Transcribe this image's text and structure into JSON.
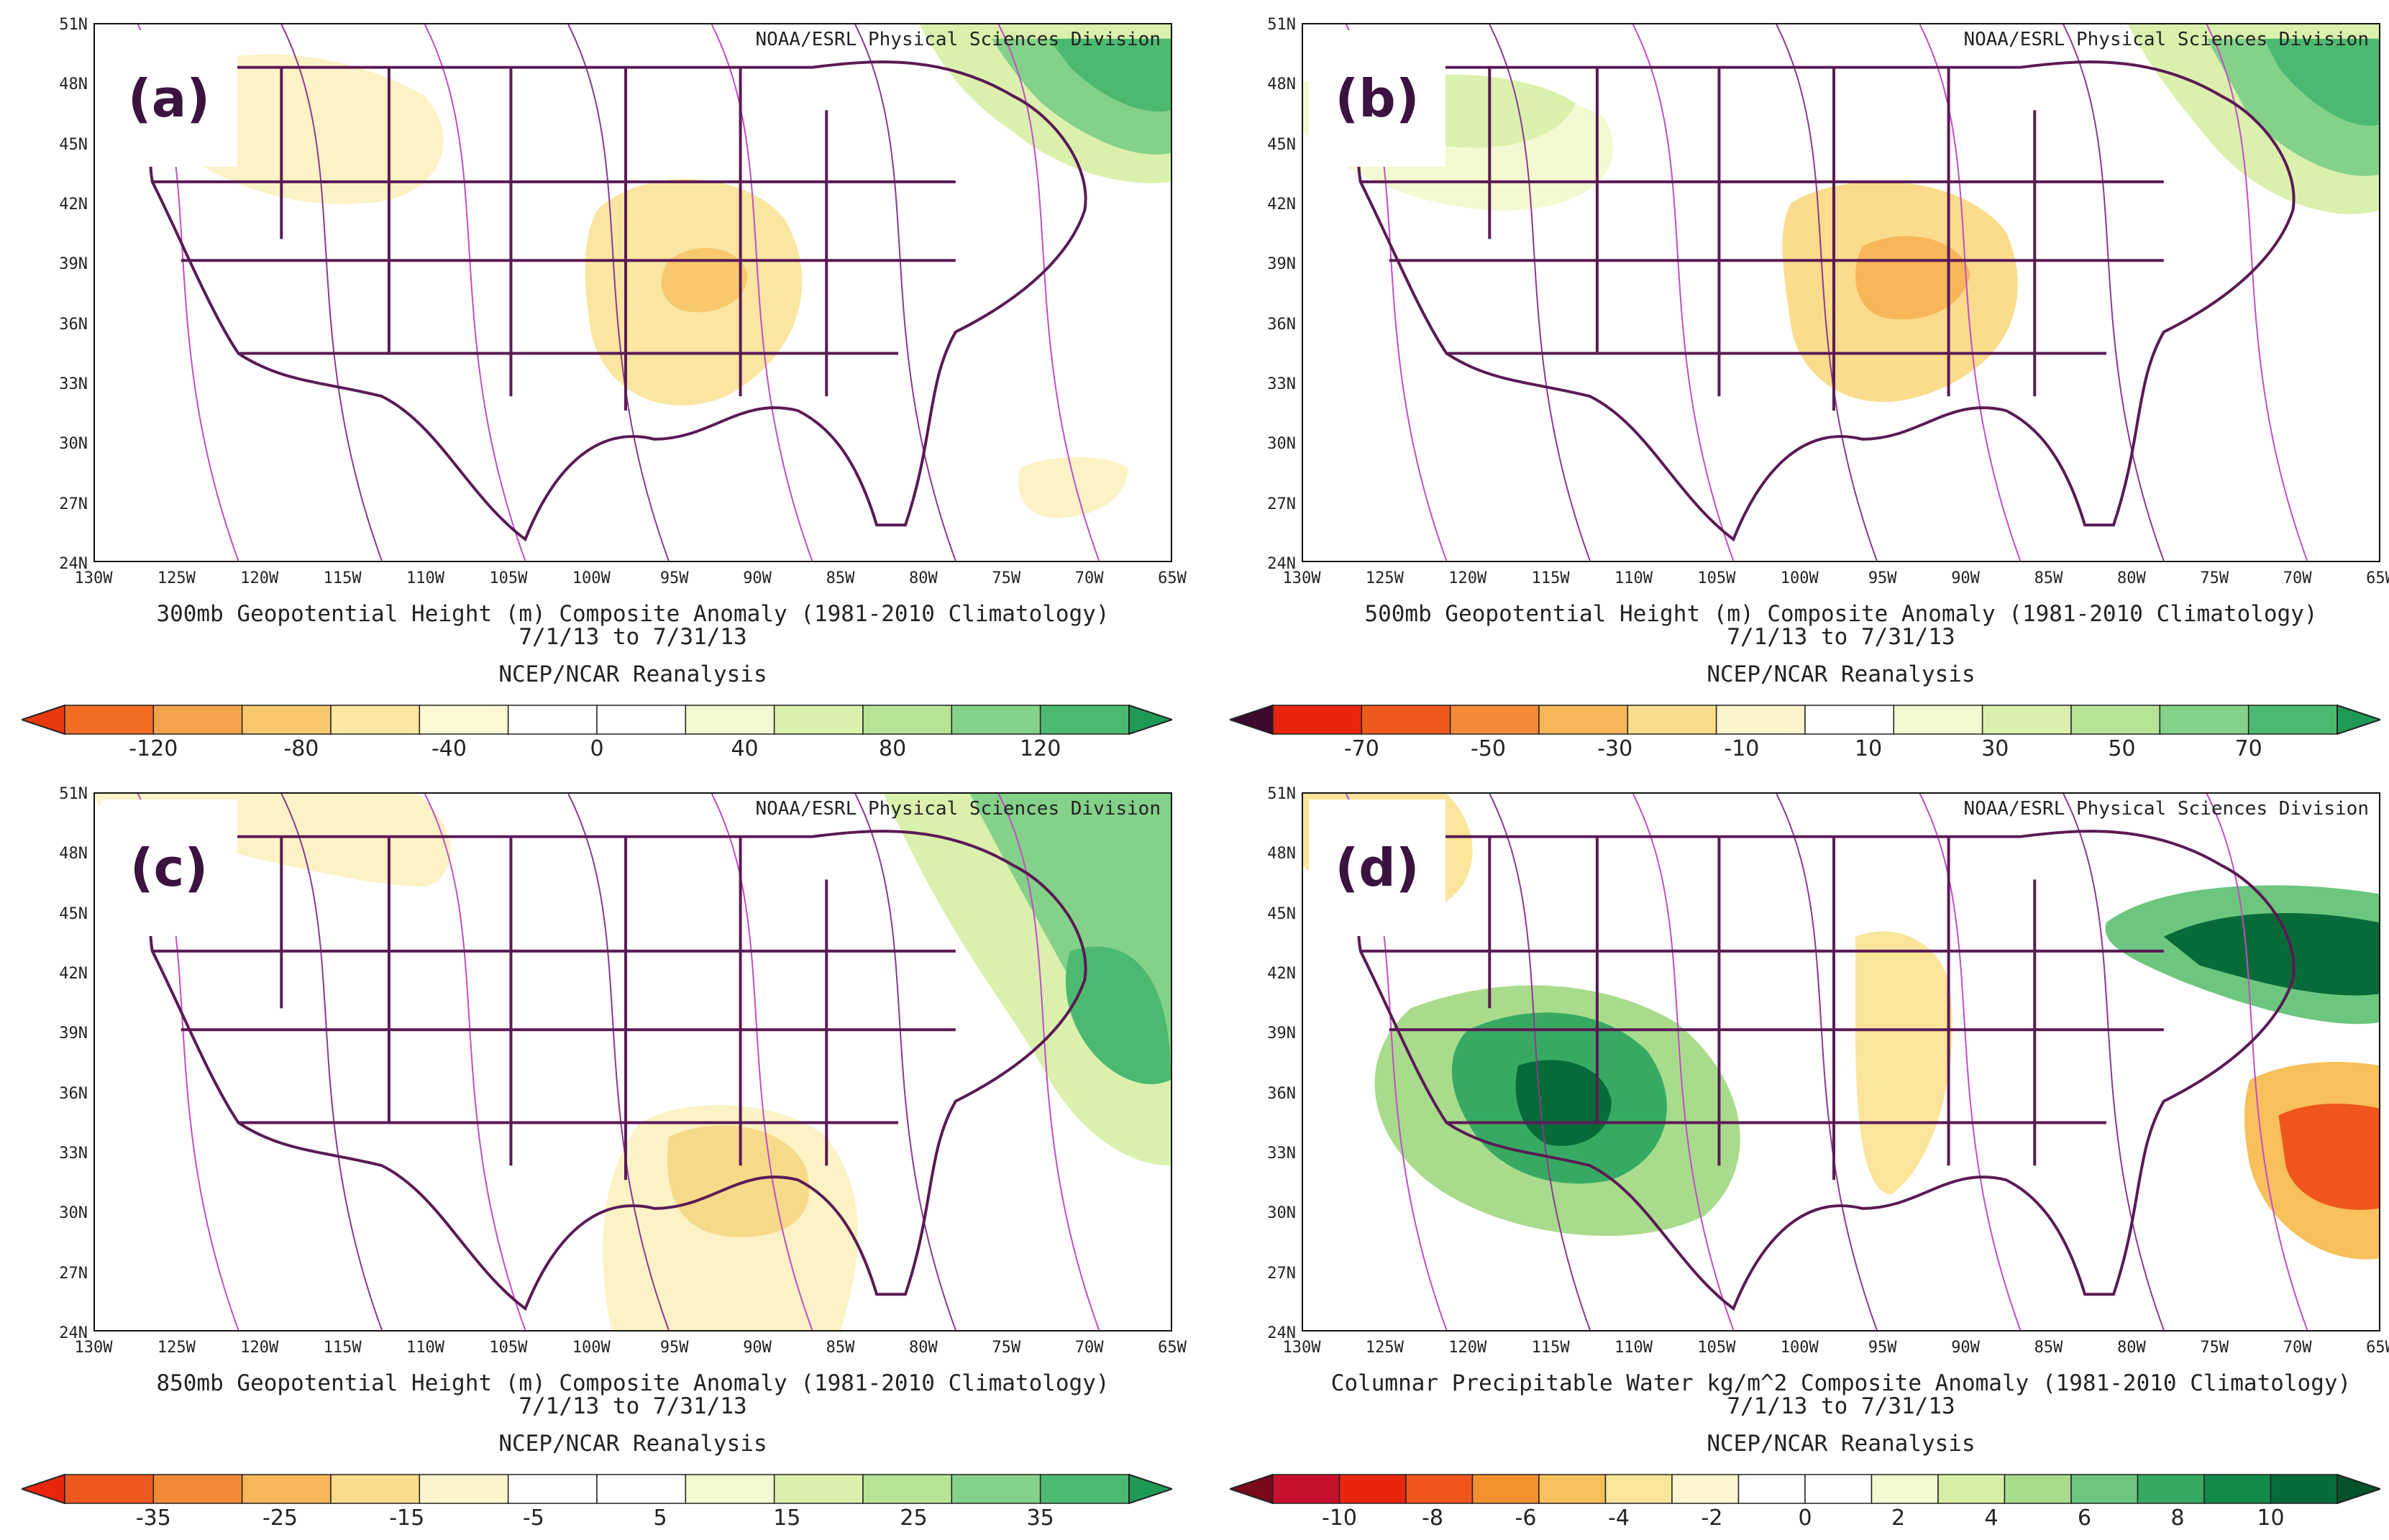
{
  "panels": [
    {
      "letter": "(a)",
      "credit": "NOAA/ESRL Physical Sciences Division",
      "caption_line1": "300mb Geopotential Height (m) Composite Anomaly (1981-2010 Climatology)",
      "caption_line2": "7/1/13  to 7/31/13",
      "caption_line3": "NCEP/NCAR Reanalysis",
      "colorbar_labels": [
        "-120",
        "-80",
        "-40",
        "0",
        "40",
        "80",
        "120"
      ],
      "colorbar_colors": [
        "#e8380d",
        "#f26c22",
        "#f5a34a",
        "#f7c86e",
        "#fae6a0",
        "#fcf8d4",
        "#ffffff",
        "#ffffff",
        "#f3f9d0",
        "#dbf0ad",
        "#b7e396",
        "#84d189",
        "#4cb971",
        "#1f9a56"
      ],
      "features": [
        "positive anomaly northeast",
        "negative anomaly central US"
      ]
    },
    {
      "letter": "(b)",
      "credit": "NOAA/ESRL Physical Sciences Division",
      "caption_line1": "500mb Geopotential Height (m) Composite Anomaly (1981-2010 Climatology)",
      "caption_line2": "7/1/13  to 7/31/13",
      "caption_line3": "NCEP/NCAR Reanalysis",
      "colorbar_labels": [
        "-70",
        "-50",
        "-30",
        "-10",
        "10",
        "30",
        "50",
        "70"
      ],
      "colorbar_colors": [
        "#3d0a2e",
        "#e8260d",
        "#ee5a1e",
        "#f58a36",
        "#f7b658",
        "#fadc8c",
        "#fcf5cc",
        "#ffffff",
        "#f3f9d0",
        "#dbf0ad",
        "#b7e396",
        "#84d189",
        "#4cb971",
        "#1f9a56"
      ],
      "features": [
        "positive anomaly northeast",
        "negative anomaly central US"
      ]
    },
    {
      "letter": "(c)",
      "credit": "NOAA/ESRL Physical Sciences Division",
      "caption_line1": "850mb Geopotential Height (m) Composite Anomaly (1981-2010 Climatology)",
      "caption_line2": "7/1/13  to 7/31/13",
      "caption_line3": "NCEP/NCAR Reanalysis",
      "colorbar_labels": [
        "-35",
        "-25",
        "-15",
        "-5",
        "5",
        "15",
        "25",
        "35"
      ],
      "colorbar_colors": [
        "#e8260d",
        "#ee5a1e",
        "#f58a36",
        "#f7b658",
        "#fadc8c",
        "#fcf5cc",
        "#ffffff",
        "#ffffff",
        "#f3f9d0",
        "#dbf0ad",
        "#b7e396",
        "#84d189",
        "#4cb971",
        "#1f9a56"
      ],
      "features": [
        "positive anomaly western Atlantic",
        "negative anomaly Gulf coast"
      ]
    },
    {
      "letter": "(d)",
      "credit": "NOAA/ESRL Physical Sciences Division",
      "caption_line1": "Columnar Precipitable Water kg/m^2 Composite Anomaly (1981-2010 Climatology)",
      "caption_line2": "7/1/13  to 7/31/13",
      "caption_line3": "NCEP/NCAR Reanalysis",
      "colorbar_labels": [
        "-10",
        "-8",
        "-6",
        "-4",
        "-2",
        "0",
        "2",
        "4",
        "6",
        "8",
        "10"
      ],
      "colorbar_colors": [
        "#7a0a1a",
        "#c8102e",
        "#e8260d",
        "#f0561c",
        "#f5902e",
        "#f8c05a",
        "#fbe59a",
        "#fdf6d0",
        "#ffffff",
        "#ffffff",
        "#f3f9d0",
        "#d6eea6",
        "#a8dc8c",
        "#6cc67e",
        "#36aa63",
        "#128a4a",
        "#066b38",
        "#04522a"
      ],
      "features": [
        "wet anomaly southwest US",
        "dry anomaly Atlantic"
      ]
    }
  ],
  "axes": {
    "lat_labels": [
      "51N",
      "48N",
      "45N",
      "42N",
      "39N",
      "36N",
      "33N",
      "30N",
      "27N",
      "24N"
    ],
    "lon_labels": [
      "130W",
      "125W",
      "120W",
      "115W",
      "110W",
      "105W",
      "100W",
      "95W",
      "90W",
      "85W",
      "80W",
      "75W",
      "70W",
      "65W"
    ]
  }
}
